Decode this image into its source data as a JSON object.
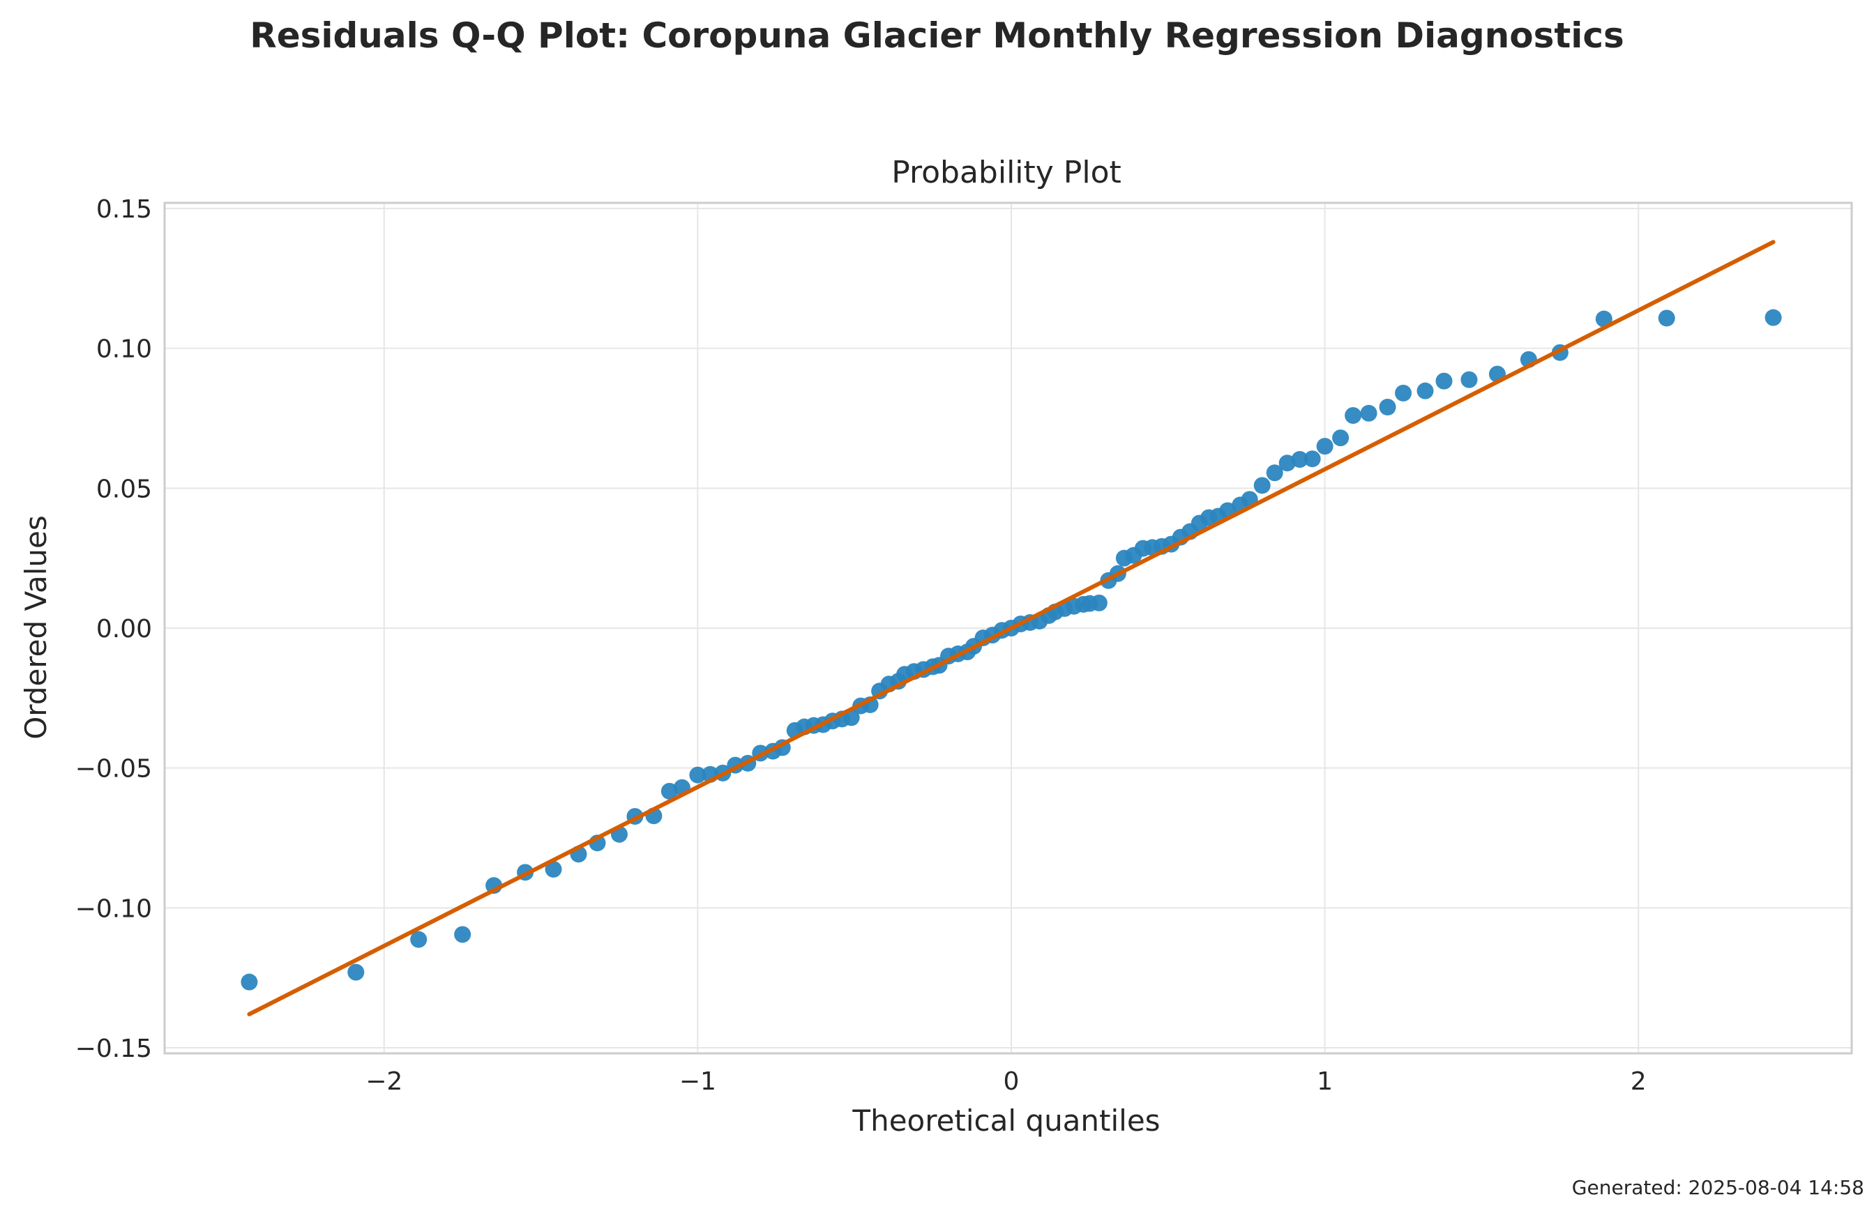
{
  "suptitle": "Residuals Q-Q Plot: Coropuna Glacier Monthly Regression Diagnostics",
  "footer": "Generated: 2025-08-04 14:58",
  "colors": {
    "points": "#2b86c0",
    "fit_line": "#d55e00",
    "grid": "#e6e6e6",
    "spine": "#cccccc"
  },
  "chart_data": {
    "type": "scatter",
    "title": "Probability Plot",
    "xlabel": "Theoretical quantiles",
    "ylabel": "Ordered Values",
    "xlim": [
      -2.7,
      2.68
    ],
    "ylim": [
      -0.152,
      0.152
    ],
    "xticks": [
      -2,
      -1,
      0,
      1,
      2
    ],
    "xtick_labels": [
      "−2",
      "−1",
      "0",
      "1",
      "2"
    ],
    "yticks": [
      -0.15,
      -0.1,
      -0.05,
      0.0,
      0.05,
      0.1,
      0.15
    ],
    "ytick_labels": [
      "−0.15",
      "−0.10",
      "−0.05",
      "0.00",
      "0.05",
      "0.10",
      "0.15"
    ],
    "grid": true,
    "fit_line": {
      "x": [
        -2.43,
        2.43
      ],
      "y": [
        -0.138,
        0.138
      ]
    },
    "points": [
      [
        -2.43,
        -0.1265
      ],
      [
        -2.09,
        -0.123
      ],
      [
        -1.89,
        -0.1113
      ],
      [
        -1.75,
        -0.1095
      ],
      [
        -1.65,
        -0.092
      ],
      [
        -1.55,
        -0.0873
      ],
      [
        -1.46,
        -0.0862
      ],
      [
        -1.38,
        -0.0808
      ],
      [
        -1.32,
        -0.0768
      ],
      [
        -1.25,
        -0.0737
      ],
      [
        -1.2,
        -0.0673
      ],
      [
        -1.14,
        -0.0671
      ],
      [
        -1.09,
        -0.0583
      ],
      [
        -1.05,
        -0.057
      ],
      [
        -1.0,
        -0.0525
      ],
      [
        -0.96,
        -0.0523
      ],
      [
        -0.92,
        -0.0518
      ],
      [
        -0.88,
        -0.049
      ],
      [
        -0.84,
        -0.0483
      ],
      [
        -0.8,
        -0.0447
      ],
      [
        -0.76,
        -0.044
      ],
      [
        -0.73,
        -0.0427
      ],
      [
        -0.69,
        -0.0366
      ],
      [
        -0.66,
        -0.0353
      ],
      [
        -0.63,
        -0.0348
      ],
      [
        -0.6,
        -0.0345
      ],
      [
        -0.57,
        -0.0332
      ],
      [
        -0.54,
        -0.0325
      ],
      [
        -0.51,
        -0.032
      ],
      [
        -0.48,
        -0.0278
      ],
      [
        -0.45,
        -0.0274
      ],
      [
        -0.42,
        -0.0225
      ],
      [
        -0.39,
        -0.02
      ],
      [
        -0.36,
        -0.019
      ],
      [
        -0.34,
        -0.0165
      ],
      [
        -0.31,
        -0.0155
      ],
      [
        -0.28,
        -0.0148
      ],
      [
        -0.25,
        -0.0138
      ],
      [
        -0.23,
        -0.0133
      ],
      [
        -0.2,
        -0.01
      ],
      [
        -0.17,
        -0.0092
      ],
      [
        -0.14,
        -0.0085
      ],
      [
        -0.12,
        -0.0065
      ],
      [
        -0.09,
        -0.0035
      ],
      [
        -0.06,
        -0.0025
      ],
      [
        -0.03,
        -0.0008
      ],
      [
        0.0,
        0.0
      ],
      [
        0.03,
        0.0015
      ],
      [
        0.06,
        0.002
      ],
      [
        0.09,
        0.0025
      ],
      [
        0.12,
        0.0045
      ],
      [
        0.14,
        0.0058
      ],
      [
        0.17,
        0.007
      ],
      [
        0.2,
        0.0078
      ],
      [
        0.23,
        0.0085
      ],
      [
        0.25,
        0.0088
      ],
      [
        0.28,
        0.009
      ],
      [
        0.31,
        0.017
      ],
      [
        0.34,
        0.0195
      ],
      [
        0.36,
        0.025
      ],
      [
        0.39,
        0.026
      ],
      [
        0.42,
        0.0285
      ],
      [
        0.45,
        0.0288
      ],
      [
        0.48,
        0.0292
      ],
      [
        0.51,
        0.03
      ],
      [
        0.54,
        0.0325
      ],
      [
        0.57,
        0.0345
      ],
      [
        0.6,
        0.0375
      ],
      [
        0.63,
        0.0395
      ],
      [
        0.66,
        0.04
      ],
      [
        0.69,
        0.042
      ],
      [
        0.73,
        0.044
      ],
      [
        0.76,
        0.046
      ],
      [
        0.8,
        0.051
      ],
      [
        0.84,
        0.0555
      ],
      [
        0.88,
        0.059
      ],
      [
        0.92,
        0.0603
      ],
      [
        0.96,
        0.0605
      ],
      [
        1.0,
        0.065
      ],
      [
        1.05,
        0.068
      ],
      [
        1.09,
        0.076
      ],
      [
        1.14,
        0.0768
      ],
      [
        1.2,
        0.079
      ],
      [
        1.25,
        0.084
      ],
      [
        1.32,
        0.0848
      ],
      [
        1.38,
        0.0883
      ],
      [
        1.46,
        0.0888
      ],
      [
        1.55,
        0.0908
      ],
      [
        1.65,
        0.096
      ],
      [
        1.75,
        0.0985
      ],
      [
        1.89,
        0.1105
      ],
      [
        2.09,
        0.1108
      ],
      [
        2.43,
        0.111
      ]
    ]
  }
}
